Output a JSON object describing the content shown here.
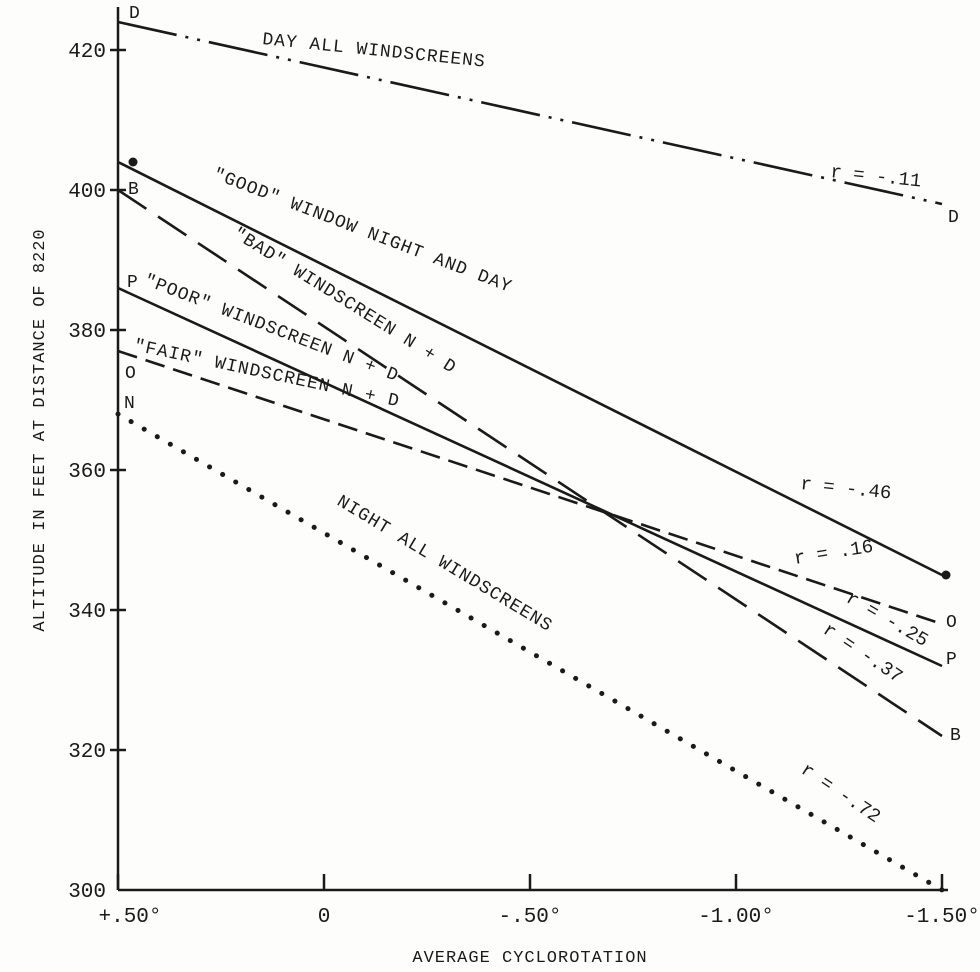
{
  "chart_data": {
    "type": "line",
    "xlabel": "AVERAGE CYCLOROTATION",
    "ylabel": "ALTITUDE IN FEET AT DISTANCE OF 8220",
    "xlim": [
      0.5,
      -1.5
    ],
    "ylim": [
      300,
      425
    ],
    "x_ticks": [
      0.5,
      0,
      -0.5,
      -1.0,
      -1.5
    ],
    "x_tick_labels": [
      "+.50°",
      "0",
      "-.50°",
      "-1.00°",
      "-1.50°"
    ],
    "y_ticks": [
      300,
      320,
      340,
      360,
      380,
      400,
      420
    ],
    "y_tick_labels": [
      "300",
      "320",
      "340",
      "360",
      "380",
      "400",
      "420"
    ],
    "grid": false,
    "legend": "none",
    "series": [
      {
        "key": "day",
        "name": "DAY ALL WINDSCREENS",
        "style": "dashdot",
        "x": [
          0.5,
          -1.5
        ],
        "y": [
          424,
          398
        ],
        "r": "r = -.11",
        "start_letter": "D",
        "end_letter": "D"
      },
      {
        "key": "good",
        "name": "\"GOOD\" WINDOW NIGHT AND DAY",
        "style": "solid",
        "x": [
          0.5,
          -1.5
        ],
        "y": [
          404,
          345
        ],
        "r": "r = -.46",
        "start_letter": "",
        "end_letter": ""
      },
      {
        "key": "bad",
        "name": "\"BAD\" WINDSCREEN N + D",
        "style": "longdash",
        "x": [
          0.5,
          -1.5
        ],
        "y": [
          400,
          322
        ],
        "r": "r = -.37",
        "start_letter": "B",
        "end_letter": "B"
      },
      {
        "key": "poor",
        "name": "\"POOR\" WINDSCREEN N + D",
        "style": "solid",
        "x": [
          0.5,
          -1.5
        ],
        "y": [
          386,
          332
        ],
        "r": "r = -.25",
        "start_letter": "P",
        "end_letter": "P"
      },
      {
        "key": "fair",
        "name": "\"FAIR\" WINDSCREEN N + D",
        "style": "shortdash",
        "x": [
          0.5,
          -1.5
        ],
        "y": [
          377,
          338
        ],
        "r": "r = .16",
        "start_letter": "O",
        "end_letter": "O"
      },
      {
        "key": "night",
        "name": "NIGHT ALL WINDSCREENS",
        "style": "dotted",
        "x": [
          0.5,
          -1.5
        ],
        "y": [
          368,
          300
        ],
        "r": "r = -.72",
        "start_letter": "N",
        "end_letter": ""
      }
    ]
  }
}
